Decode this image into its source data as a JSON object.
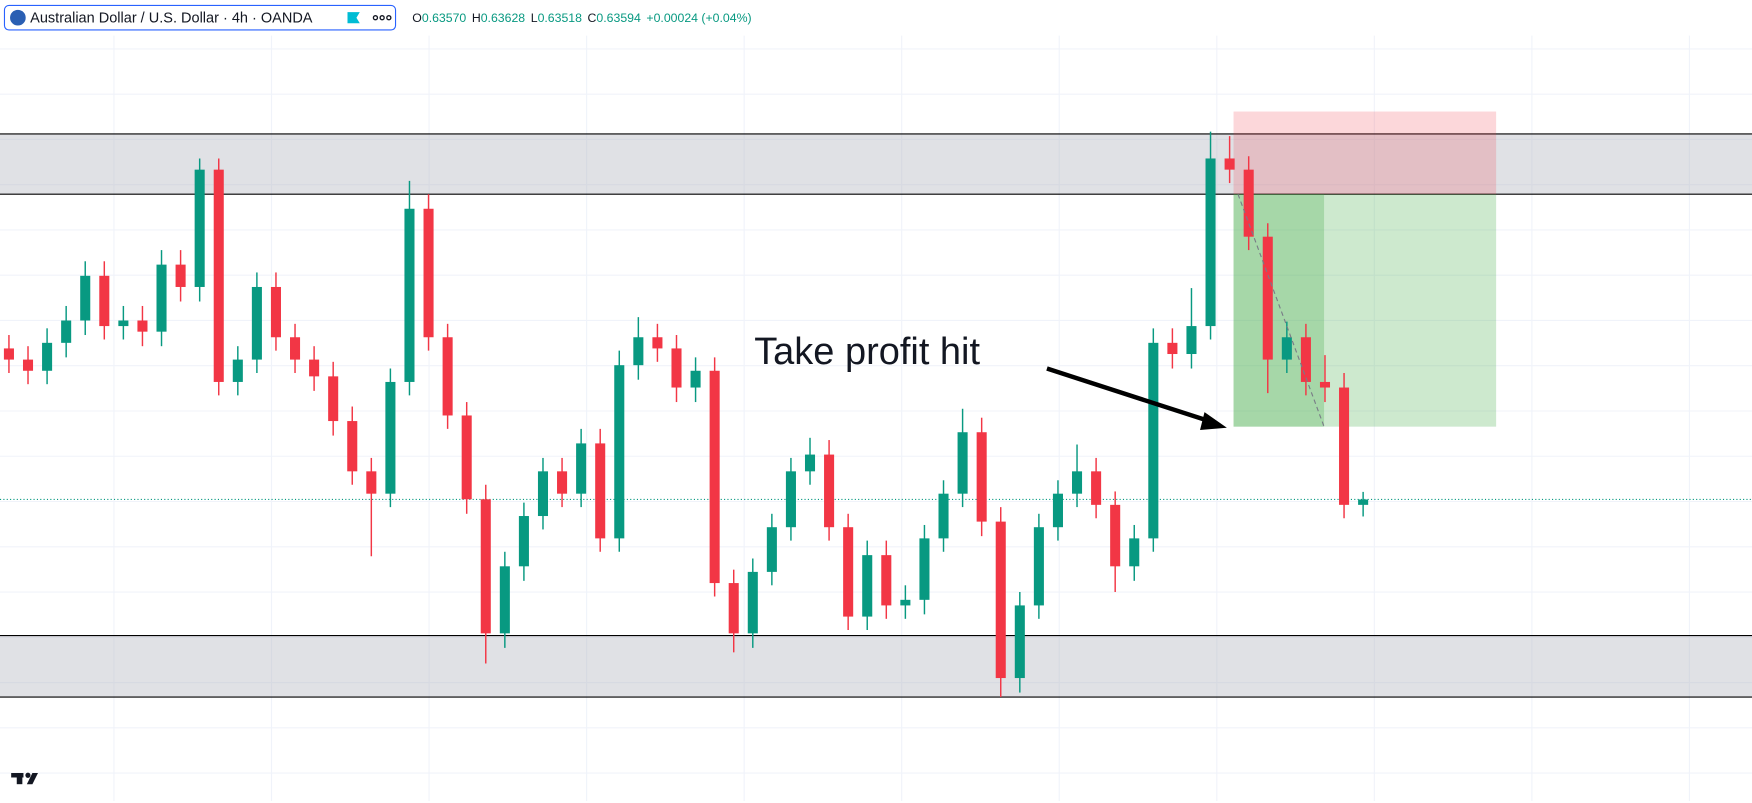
{
  "header": {
    "symbol": "Australian Dollar / U.S. Dollar · 4h · OANDA",
    "ohlc": [
      {
        "key": "O",
        "value": {
          "value": 0.6357,
          "label": "0.63570"
        }
      },
      {
        "key": "H",
        "value": {
          "value": 0.63628,
          "label": "0.63628"
        }
      },
      {
        "key": "L",
        "value": {
          "value": 0.63518,
          "label": "0.63518"
        }
      },
      {
        "key": "C",
        "value": {
          "value": 0.63594,
          "label": "0.63594"
        }
      }
    ],
    "change": "+0.00024 (+0.04%)"
  },
  "chart_data": {
    "type": "candlestick",
    "open": [
      0.6427,
      0.6422,
      0.6417,
      0.64295,
      0.64395,
      0.64595,
      0.6437,
      0.64395,
      0.64345,
      0.64645,
      0.64545,
      0.6507,
      0.6412,
      0.6422,
      0.64545,
      0.6432,
      0.6422,
      0.64145,
      0.63945,
      0.6372,
      0.6362,
      0.6412,
      0.64895,
      0.6432,
      0.6397,
      0.63595,
      0.62995,
      0.63295,
      0.6352,
      0.6372,
      0.6362,
      0.63845,
      0.6342,
      0.64195,
      0.6432,
      0.6427,
      0.64095,
      0.6417,
      0.6322,
      0.62995,
      0.6327,
      0.6347,
      0.6372,
      0.63795,
      0.6347,
      0.6307,
      0.63345,
      0.6312,
      0.63145,
      0.6342,
      0.6362,
      0.63895,
      0.63495,
      0.62795,
      0.6312,
      0.6347,
      0.6362,
      0.6372,
      0.6357,
      0.63295,
      0.6342,
      0.64295,
      0.64245,
      0.6437,
      0.6512,
      0.6507,
      0.6477,
      0.6422,
      0.6432,
      0.6412,
      0.64095,
      0.6357
    ],
    "high": [
      0.6433,
      0.6428,
      0.6436,
      0.6446,
      0.6466,
      0.6466,
      0.6446,
      0.6446,
      0.6471,
      0.6471,
      0.6512,
      0.6512,
      0.6428,
      0.6461,
      0.6461,
      0.6438,
      0.6428,
      0.6421,
      0.6401,
      0.6378,
      0.6418,
      0.6502,
      0.6496,
      0.6438,
      0.6403,
      0.6366,
      0.6336,
      0.6358,
      0.6378,
      0.6378,
      0.6391,
      0.6391,
      0.6426,
      0.6441,
      0.6438,
      0.6433,
      0.6423,
      0.6423,
      0.6328,
      0.6333,
      0.6353,
      0.6378,
      0.6387,
      0.6386,
      0.6353,
      0.6341,
      0.6341,
      0.6321,
      0.6348,
      0.6368,
      0.64,
      0.6396,
      0.6356,
      0.6318,
      0.6353,
      0.6368,
      0.6384,
      0.6378,
      0.6363,
      0.6348,
      0.6436,
      0.6436,
      0.6454,
      0.6524,
      0.6522,
      0.6513,
      0.6483,
      0.6439,
      0.6438,
      0.6424,
      0.6416,
      0.63628
    ],
    "low": [
      0.6416,
      0.6411,
      0.6411,
      0.6423,
      0.6433,
      0.6431,
      0.6431,
      0.6428,
      0.6428,
      0.6448,
      0.6448,
      0.6406,
      0.6406,
      0.6416,
      0.6426,
      0.6416,
      0.6408,
      0.6388,
      0.6366,
      0.6334,
      0.6356,
      0.6406,
      0.6426,
      0.6391,
      0.6353,
      0.6286,
      0.6293,
      0.6323,
      0.6346,
      0.6356,
      0.6356,
      0.6336,
      0.6336,
      0.6413,
      0.6421,
      0.6403,
      0.6403,
      0.6316,
      0.6291,
      0.6293,
      0.6321,
      0.6341,
      0.6366,
      0.6341,
      0.6301,
      0.6301,
      0.6306,
      0.6306,
      0.6308,
      0.6336,
      0.6356,
      0.6343,
      0.6271,
      0.6273,
      0.6306,
      0.6341,
      0.6356,
      0.6351,
      0.6318,
      0.6323,
      0.6336,
      0.6418,
      0.6418,
      0.6431,
      0.6501,
      0.6471,
      0.6407,
      0.6416,
      0.6406,
      0.6403,
      0.6351,
      0.63518
    ],
    "close": [
      0.6422,
      0.6417,
      0.64295,
      0.64395,
      0.64595,
      0.6437,
      0.64395,
      0.64345,
      0.64645,
      0.64545,
      0.6507,
      0.6412,
      0.6422,
      0.64545,
      0.6432,
      0.6422,
      0.64145,
      0.63945,
      0.6372,
      0.6362,
      0.6412,
      0.64895,
      0.6432,
      0.6397,
      0.63595,
      0.62995,
      0.63295,
      0.6352,
      0.6372,
      0.6362,
      0.63845,
      0.6342,
      0.64195,
      0.6432,
      0.6427,
      0.64095,
      0.6417,
      0.6322,
      0.62995,
      0.6327,
      0.6347,
      0.6372,
      0.63795,
      0.6347,
      0.6307,
      0.63345,
      0.6312,
      0.63145,
      0.6342,
      0.6362,
      0.63895,
      0.63495,
      0.62795,
      0.6312,
      0.6347,
      0.6362,
      0.6372,
      0.6357,
      0.63295,
      0.6342,
      0.64295,
      0.64245,
      0.6437,
      0.6512,
      0.6507,
      0.6477,
      0.6422,
      0.6432,
      0.6412,
      0.64095,
      0.6357,
      0.63594
    ],
    "up_color": "#089981",
    "down_color": "#f23645",
    "ylim": [
      0.62245,
      0.6582
    ],
    "zones": [
      {
        "low": 0.6496,
        "high": 0.6523
      },
      {
        "low": 0.6271,
        "high": 0.62985
      }
    ],
    "position": {
      "entry": 0.6496,
      "stop": 0.6533,
      "target": 0.6392
    },
    "annotation": "Take profit hit"
  }
}
